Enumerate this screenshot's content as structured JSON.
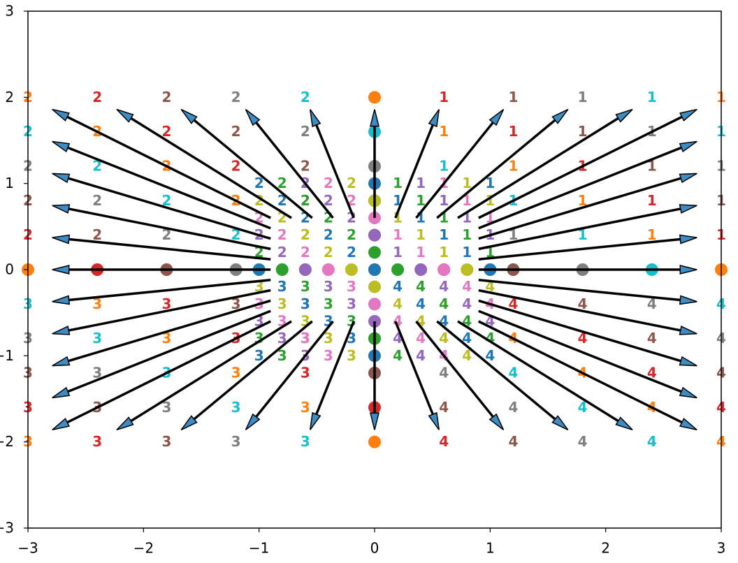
{
  "chart_data": {
    "type": "quiver",
    "xlim": [
      -3,
      3
    ],
    "ylim": [
      -3,
      3
    ],
    "xticks": [
      {
        "value": -3,
        "label": "−3"
      },
      {
        "value": -2,
        "label": "−2"
      },
      {
        "value": -1,
        "label": "−1"
      },
      0,
      1,
      2,
      3
    ],
    "yticks": [
      {
        "value": -3,
        "label": "−3"
      },
      {
        "value": -2,
        "label": "−2"
      },
      {
        "value": -1,
        "label": "−1"
      },
      0,
      1,
      2,
      3
    ],
    "outer": {
      "x": [
        -3,
        -2.4,
        -1.8,
        -1.2,
        -0.6,
        0,
        0.6,
        1.2,
        1.8,
        2.4,
        3
      ],
      "y": [
        2,
        1.6,
        1.2,
        0.8,
        0.4,
        0,
        -0.4,
        -0.8,
        -1.2,
        -1.6,
        -2
      ],
      "labels": [
        [
          "2",
          "2",
          "2",
          "2",
          "2",
          null,
          "1",
          "1",
          "1",
          "1",
          "1"
        ],
        [
          "2",
          "2",
          "2",
          "2",
          "2",
          null,
          "1",
          "1",
          "1",
          "1",
          "1"
        ],
        [
          "2",
          "2",
          "2",
          "2",
          "2",
          null,
          "1",
          "1",
          "1",
          "1",
          "1"
        ],
        [
          "2",
          "2",
          "2",
          "2",
          "2",
          null,
          "1",
          "1",
          "1",
          "1",
          "1"
        ],
        [
          "2",
          "2",
          "2",
          "2",
          "2",
          null,
          "1",
          "1",
          "1",
          "1",
          "1"
        ],
        [
          null,
          null,
          null,
          null,
          null,
          null,
          null,
          null,
          null,
          null,
          null
        ],
        [
          "3",
          "3",
          "3",
          "3",
          "3",
          null,
          "4",
          "4",
          "4",
          "4",
          "4"
        ],
        [
          "3",
          "3",
          "3",
          "3",
          "3",
          null,
          "4",
          "4",
          "4",
          "4",
          "4"
        ],
        [
          "3",
          "3",
          "3",
          "3",
          "3",
          null,
          "4",
          "4",
          "4",
          "4",
          "4"
        ],
        [
          "3",
          "3",
          "3",
          "3",
          "3",
          null,
          "4",
          "4",
          "4",
          "4",
          "4"
        ],
        [
          "3",
          "3",
          "3",
          "3",
          "3",
          null,
          "4",
          "4",
          "4",
          "4",
          "4"
        ]
      ],
      "colors": [
        [
          "#ff7f0e",
          "#d62728",
          "#8c564b",
          "#7f7f7f",
          "#17becf",
          "#ff7f0e",
          "#d62728",
          "#8c564b",
          "#7f7f7f",
          "#17becf",
          "#ff7f0e"
        ],
        [
          "#17becf",
          "#ff7f0e",
          "#d62728",
          "#8c564b",
          "#7f7f7f",
          "#17becf",
          "#ff7f0e",
          "#d62728",
          "#8c564b",
          "#7f7f7f",
          "#17becf"
        ],
        [
          "#7f7f7f",
          "#17becf",
          "#ff7f0e",
          "#d62728",
          "#8c564b",
          "#7f7f7f",
          "#17becf",
          "#ff7f0e",
          "#d62728",
          "#8c564b",
          "#7f7f7f"
        ],
        [
          "#8c564b",
          "#7f7f7f",
          "#17becf",
          "#ff7f0e",
          "#d62728",
          "#8c564b",
          "#7f7f7f",
          "#17becf",
          "#ff7f0e",
          "#d62728",
          "#8c564b"
        ],
        [
          "#d62728",
          "#8c564b",
          "#7f7f7f",
          "#17becf",
          "#ff7f0e",
          "#d62728",
          "#8c564b",
          "#7f7f7f",
          "#17becf",
          "#ff7f0e",
          "#d62728"
        ],
        [
          "#ff7f0e",
          "#d62728",
          "#8c564b",
          "#7f7f7f",
          "#17becf",
          "#ff7f0e",
          "#d62728",
          "#8c564b",
          "#7f7f7f",
          "#17becf",
          "#ff7f0e"
        ],
        [
          "#17becf",
          "#ff7f0e",
          "#d62728",
          "#8c564b",
          "#7f7f7f",
          "#17becf",
          "#ff7f0e",
          "#d62728",
          "#8c564b",
          "#7f7f7f",
          "#17becf"
        ],
        [
          "#7f7f7f",
          "#17becf",
          "#ff7f0e",
          "#d62728",
          "#8c564b",
          "#7f7f7f",
          "#17becf",
          "#ff7f0e",
          "#d62728",
          "#8c564b",
          "#7f7f7f"
        ],
        [
          "#8c564b",
          "#7f7f7f",
          "#17becf",
          "#ff7f0e",
          "#d62728",
          "#8c564b",
          "#7f7f7f",
          "#17becf",
          "#ff7f0e",
          "#d62728",
          "#8c564b"
        ],
        [
          "#d62728",
          "#8c564b",
          "#7f7f7f",
          "#17becf",
          "#ff7f0e",
          "#d62728",
          "#8c564b",
          "#7f7f7f",
          "#17becf",
          "#ff7f0e",
          "#d62728"
        ],
        [
          "#ff7f0e",
          "#d62728",
          "#8c564b",
          "#7f7f7f",
          "#17becf",
          "#ff7f0e",
          "#d62728",
          "#8c564b",
          "#7f7f7f",
          "#17becf",
          "#ff7f0e"
        ]
      ]
    },
    "inner": {
      "x": [
        -1,
        -0.8,
        -0.6,
        -0.4,
        -0.2,
        0,
        0.2,
        0.4,
        0.6,
        0.8,
        1
      ],
      "y": [
        1,
        0.8,
        0.6,
        0.4,
        0.2,
        0,
        -0.2,
        -0.4,
        -0.6,
        -0.8,
        -1
      ],
      "labels": [
        [
          "2",
          "2",
          "2",
          "2",
          "2",
          null,
          "1",
          "1",
          "1",
          "1",
          "1"
        ],
        [
          "2",
          "2",
          "2",
          "2",
          "2",
          null,
          "1",
          "1",
          "1",
          "1",
          "1"
        ],
        [
          "2",
          "2",
          "2",
          "2",
          "2",
          null,
          "1",
          "1",
          "1",
          "1",
          "1"
        ],
        [
          "2",
          "2",
          "2",
          "2",
          "2",
          null,
          "1",
          "1",
          "1",
          "1",
          "1"
        ],
        [
          "2",
          "2",
          "2",
          "2",
          "2",
          null,
          "1",
          "1",
          "1",
          "1",
          "1"
        ],
        [
          null,
          null,
          null,
          null,
          null,
          null,
          null,
          null,
          null,
          null,
          null
        ],
        [
          "3",
          "3",
          "3",
          "3",
          "3",
          null,
          "4",
          "4",
          "4",
          "4",
          "4"
        ],
        [
          "3",
          "3",
          "3",
          "3",
          "3",
          null,
          "4",
          "4",
          "4",
          "4",
          "4"
        ],
        [
          "3",
          "3",
          "3",
          "3",
          "3",
          null,
          "4",
          "4",
          "4",
          "4",
          "4"
        ],
        [
          "3",
          "3",
          "3",
          "3",
          "3",
          null,
          "4",
          "4",
          "4",
          "4",
          "4"
        ],
        [
          "3",
          "3",
          "3",
          "3",
          "3",
          null,
          "4",
          "4",
          "4",
          "4",
          "4"
        ]
      ],
      "colors": [
        [
          "#1f77b4",
          "#2ca02c",
          "#9467bd",
          "#e377c2",
          "#bcbd22",
          "#1f77b4",
          "#2ca02c",
          "#9467bd",
          "#e377c2",
          "#bcbd22",
          "#1f77b4"
        ],
        [
          "#bcbd22",
          "#1f77b4",
          "#2ca02c",
          "#9467bd",
          "#e377c2",
          "#bcbd22",
          "#1f77b4",
          "#2ca02c",
          "#9467bd",
          "#e377c2",
          "#bcbd22"
        ],
        [
          "#e377c2",
          "#bcbd22",
          "#1f77b4",
          "#2ca02c",
          "#9467bd",
          "#e377c2",
          "#bcbd22",
          "#1f77b4",
          "#2ca02c",
          "#9467bd",
          "#e377c2"
        ],
        [
          "#9467bd",
          "#e377c2",
          "#bcbd22",
          "#1f77b4",
          "#2ca02c",
          "#9467bd",
          "#e377c2",
          "#bcbd22",
          "#1f77b4",
          "#2ca02c",
          "#9467bd"
        ],
        [
          "#2ca02c",
          "#9467bd",
          "#e377c2",
          "#bcbd22",
          "#1f77b4",
          "#2ca02c",
          "#9467bd",
          "#e377c2",
          "#bcbd22",
          "#1f77b4",
          "#2ca02c"
        ],
        [
          "#1f77b4",
          "#2ca02c",
          "#9467bd",
          "#e377c2",
          "#bcbd22",
          "#1f77b4",
          "#2ca02c",
          "#9467bd",
          "#e377c2",
          "#bcbd22",
          "#1f77b4"
        ],
        [
          "#bcbd22",
          "#1f77b4",
          "#2ca02c",
          "#9467bd",
          "#e377c2",
          "#bcbd22",
          "#1f77b4",
          "#2ca02c",
          "#9467bd",
          "#e377c2",
          "#bcbd22"
        ],
        [
          "#e377c2",
          "#bcbd22",
          "#1f77b4",
          "#2ca02c",
          "#9467bd",
          "#e377c2",
          "#bcbd22",
          "#1f77b4",
          "#2ca02c",
          "#9467bd",
          "#e377c2"
        ],
        [
          "#9467bd",
          "#e377c2",
          "#bcbd22",
          "#1f77b4",
          "#2ca02c",
          "#9467bd",
          "#e377c2",
          "#bcbd22",
          "#1f77b4",
          "#2ca02c",
          "#9467bd"
        ],
        [
          "#2ca02c",
          "#9467bd",
          "#e377c2",
          "#bcbd22",
          "#1f77b4",
          "#2ca02c",
          "#9467bd",
          "#e377c2",
          "#bcbd22",
          "#1f77b4",
          "#2ca02c"
        ],
        [
          "#1f77b4",
          "#2ca02c",
          "#9467bd",
          "#e377c2",
          "#bcbd22",
          "#1f77b4",
          "#2ca02c",
          "#9467bd",
          "#e377c2",
          "#bcbd22",
          "#1f77b4"
        ]
      ]
    },
    "arrows": {
      "color": "#3d8cc4",
      "edge_color": "#000000",
      "x": [
        -0.9,
        -0.9,
        -0.9,
        -0.9,
        -0.9,
        -0.9,
        -0.9,
        -0.9,
        -0.9,
        -0.9,
        -0.9,
        0.9,
        0.9,
        0.9,
        0.9,
        0.9,
        0.9,
        0.9,
        0.9,
        0.9,
        0.9,
        0.9,
        -0.72,
        -0.54,
        -0.36,
        -0.18,
        0,
        0.18,
        0.36,
        0.54,
        0.72,
        -0.72,
        -0.54,
        -0.36,
        -0.18,
        0,
        0.18,
        0.36,
        0.54,
        0.72
      ],
      "y": [
        0.6,
        0.48,
        0.36,
        0.24,
        0.12,
        0,
        -0.12,
        -0.24,
        -0.36,
        -0.48,
        -0.6,
        0.6,
        0.48,
        0.36,
        0.24,
        0.12,
        0,
        -0.12,
        -0.24,
        -0.36,
        -0.48,
        -0.6,
        0.6,
        0.6,
        0.6,
        0.6,
        0.6,
        0.6,
        0.6,
        0.6,
        0.6,
        -0.6,
        -0.6,
        -0.6,
        -0.6,
        -0.6,
        -0.6,
        -0.6,
        -0.6,
        -0.6
      ],
      "u": [
        -1.89,
        -1.89,
        -1.89,
        -1.89,
        -1.89,
        -1.89,
        -1.89,
        -1.89,
        -1.89,
        -1.89,
        -1.89,
        1.89,
        1.89,
        1.89,
        1.89,
        1.89,
        1.89,
        1.89,
        1.89,
        1.89,
        1.89,
        1.89,
        -1.512,
        -1.134,
        -0.756,
        -0.378,
        0,
        0.378,
        0.756,
        1.134,
        1.512,
        -1.512,
        -1.134,
        -0.756,
        -0.378,
        0,
        0.378,
        0.756,
        1.134,
        1.512
      ],
      "v": [
        1.26,
        1.008,
        0.756,
        0.504,
        0.252,
        0,
        -0.252,
        -0.504,
        -0.756,
        -1.008,
        -1.26,
        1.26,
        1.008,
        0.756,
        0.504,
        0.252,
        0,
        -0.252,
        -0.504,
        -0.756,
        -1.008,
        -1.26,
        1.26,
        1.26,
        1.26,
        1.26,
        1.26,
        1.26,
        1.26,
        1.26,
        1.26,
        -1.26,
        -1.26,
        -1.26,
        -1.26,
        -1.26,
        -1.26,
        -1.26,
        -1.26,
        -1.26
      ]
    }
  }
}
